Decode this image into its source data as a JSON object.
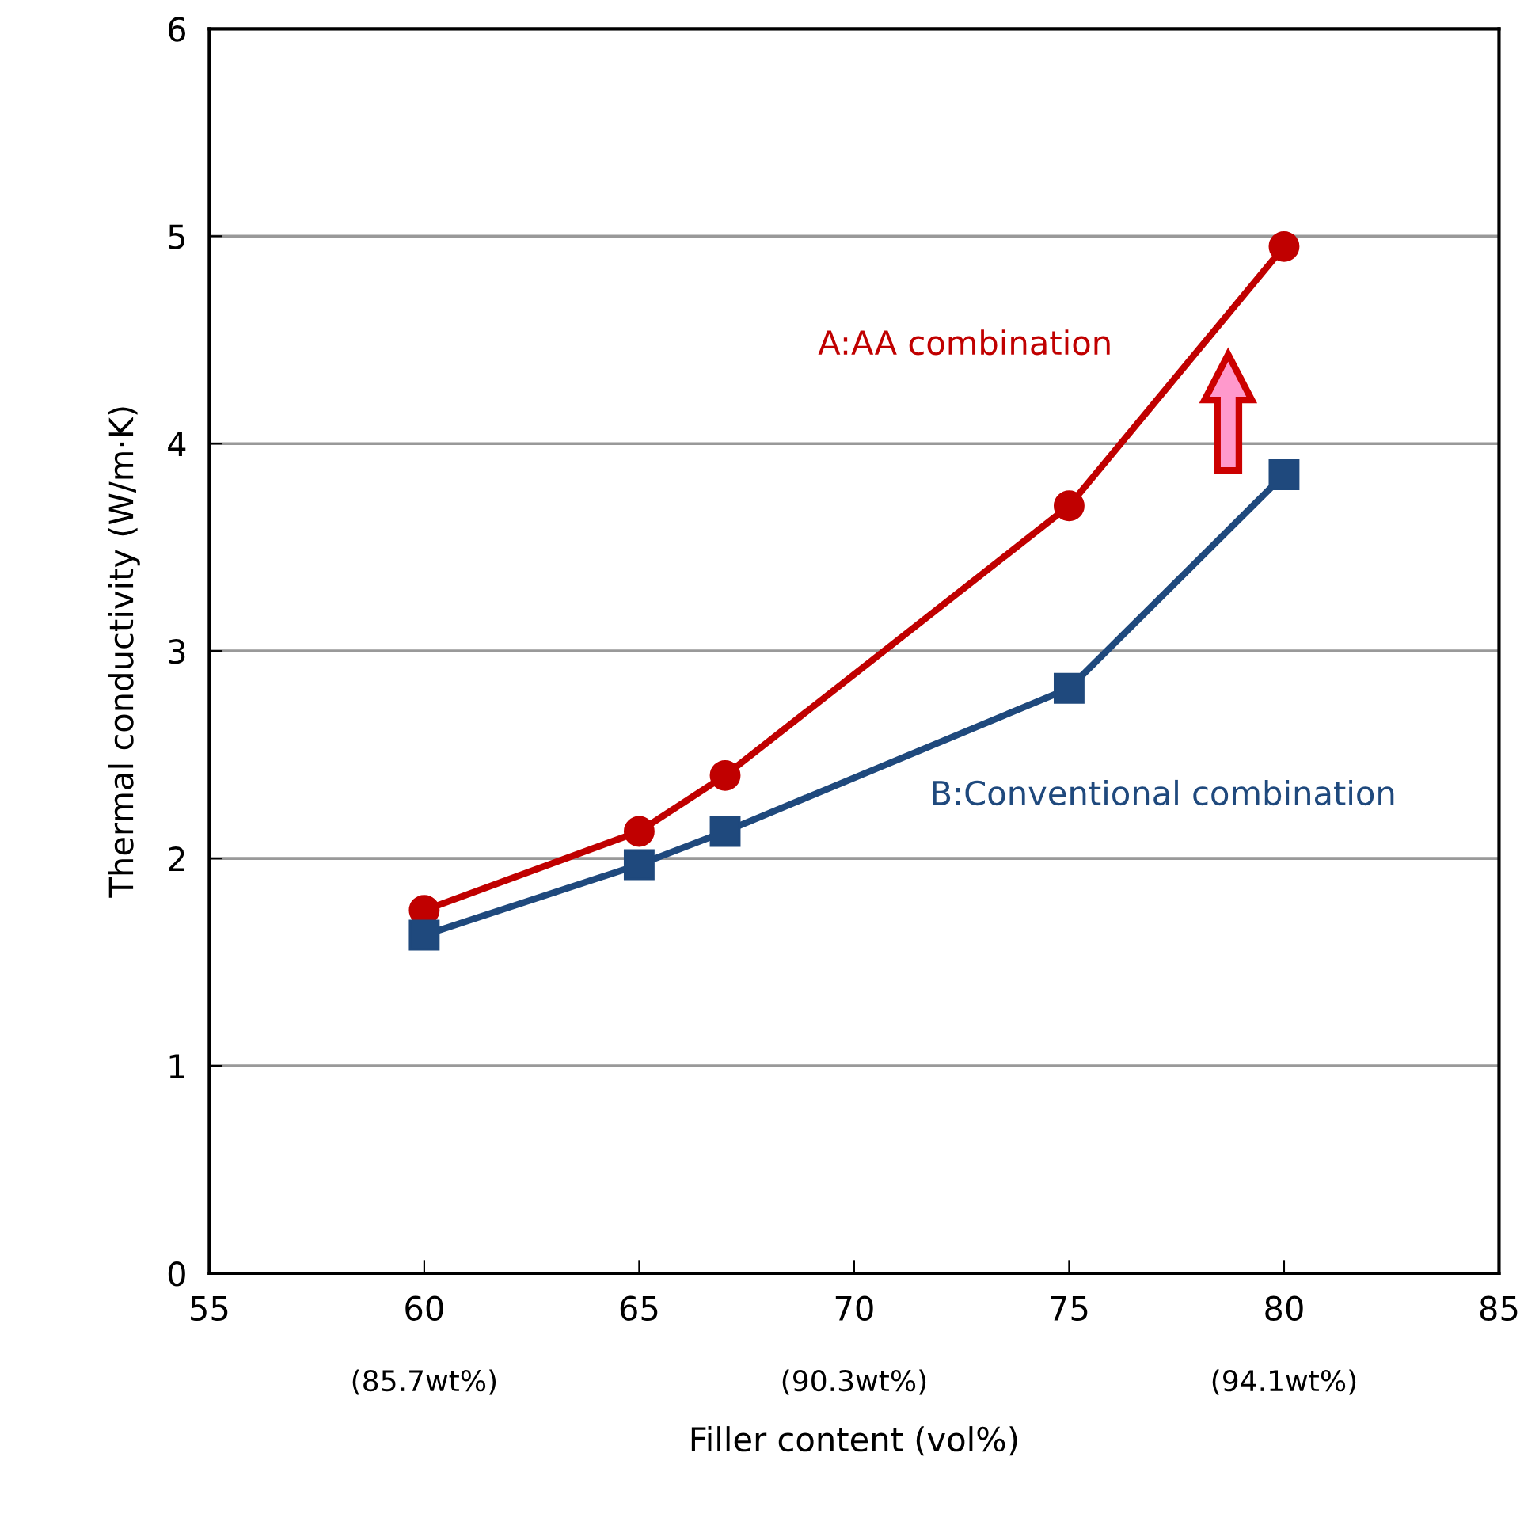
{
  "chart_data": {
    "type": "line",
    "xlabel": "Filler content (vol%)",
    "ylabel": "Thermal conductivity (W/m·K)",
    "x": [
      60,
      65,
      67,
      75,
      80
    ],
    "series": [
      {
        "name": "A:AA combination",
        "color": "#c00000",
        "marker": "circle",
        "values": [
          1.75,
          2.13,
          2.4,
          3.7,
          4.95
        ]
      },
      {
        "name": "B:Conventional combination",
        "color": "#1f497d",
        "marker": "square",
        "values": [
          1.63,
          1.97,
          2.13,
          2.82,
          3.85
        ]
      }
    ],
    "xlim": [
      55,
      85
    ],
    "xticks": [
      55,
      60,
      65,
      70,
      75,
      80,
      85
    ],
    "ylim": [
      0,
      6
    ],
    "yticks": [
      0,
      1,
      2,
      3,
      4,
      5,
      6
    ],
    "grid": "y",
    "legend": false,
    "line_style": "solid",
    "annotations": [
      "(85.7wt%)",
      "(90.3wt%)",
      "(94.1wt%)"
    ]
  }
}
